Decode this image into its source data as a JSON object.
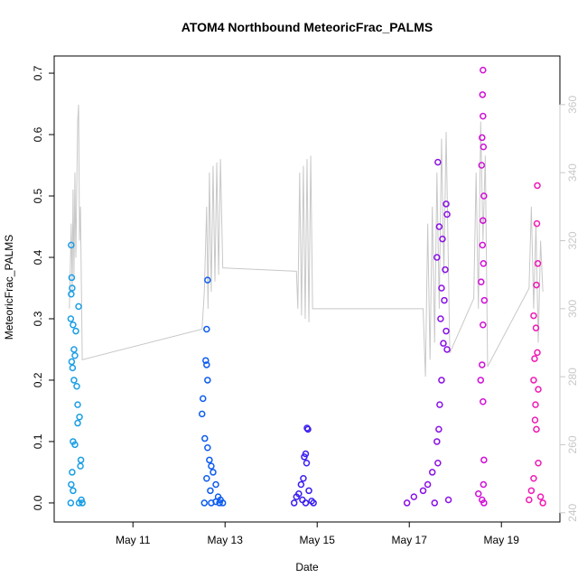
{
  "chart_data": {
    "type": "scatter",
    "title": "ATOM4 Northbound MeteoricFrac_PALMS",
    "xlabel": "Date",
    "ylabel": "MeteoricFrac_PALMS",
    "xlim": [
      9.29,
      20.27
    ],
    "ylim": [
      -0.031,
      0.728
    ],
    "y2lim": [
      237.3,
      374.3
    ],
    "xticks": [
      {
        "value": 11,
        "label": "May 11"
      },
      {
        "value": 13,
        "label": "May 13"
      },
      {
        "value": 15,
        "label": "May 15"
      },
      {
        "value": 17,
        "label": "May 17"
      },
      {
        "value": 19,
        "label": "May 19"
      }
    ],
    "yticks": [
      {
        "value": 0,
        "label": "0.0"
      },
      0.1,
      0.2,
      0.3,
      0.4,
      0.5,
      0.6,
      0.7
    ],
    "y2ticks": [
      240,
      260,
      280,
      300,
      320,
      340,
      360
    ],
    "y2color": "#c8c8c8",
    "series": [
      {
        "color": "#1a9ee6",
        "x": [
          9.66,
          9.67,
          9.68,
          9.66,
          9.65,
          9.7,
          9.72,
          9.74,
          9.67,
          9.69,
          9.78,
          9.8,
          9.84,
          9.7,
          9.74,
          9.86,
          9.68,
          9.66,
          9.7,
          9.65,
          9.9,
          9.88,
          9.82,
          9.76,
          9.72,
          9.8,
          9.87,
          9.83
        ],
        "values": [
          0.42,
          0.367,
          0.35,
          0.34,
          0.3,
          0.29,
          0.25,
          0.24,
          0.23,
          0.22,
          0.19,
          0.16,
          0.14,
          0.1,
          0.095,
          0.06,
          0.05,
          0.03,
          0.02,
          0,
          0,
          0.005,
          0.32,
          0.28,
          0.2,
          0.13,
          0.07,
          0
        ]
      },
      {
        "color": "#0d5cf0",
        "x": [
          12.62,
          12.6,
          12.58,
          12.6,
          12.62,
          12.52,
          12.5,
          12.56,
          12.62,
          12.66,
          12.7,
          12.74,
          12.6,
          12.8,
          12.68,
          12.85,
          12.9,
          12.55,
          12.7,
          12.95,
          12.8,
          12.88
        ],
        "values": [
          0.363,
          0.283,
          0.232,
          0.225,
          0.2,
          0.17,
          0.145,
          0.105,
          0.09,
          0.07,
          0.06,
          0.05,
          0.04,
          0.03,
          0.02,
          0.01,
          0.005,
          0,
          0,
          0,
          0.002,
          0
        ]
      },
      {
        "color": "#3a1ef0",
        "x": [
          14.78,
          14.8,
          14.75,
          14.72,
          14.77,
          14.7,
          14.65,
          14.82,
          14.6,
          14.55,
          14.68,
          14.88,
          14.5,
          14.75,
          14.92
        ],
        "values": [
          0.122,
          0.12,
          0.08,
          0.075,
          0.065,
          0.04,
          0.03,
          0.02,
          0.015,
          0.01,
          0.005,
          0.003,
          0,
          0,
          0
        ]
      },
      {
        "color": "#8a10e6",
        "x": [
          17.62,
          17.8,
          17.82,
          17.65,
          17.72,
          17.6,
          17.78,
          17.7,
          17.76,
          17.68,
          17.8,
          17.74,
          17.82,
          17.7,
          17.66,
          17.64,
          17.6,
          17.62,
          17.5,
          17.4,
          17.3,
          17.1,
          17.85,
          16.95,
          17.55
        ],
        "values": [
          0.555,
          0.487,
          0.47,
          0.45,
          0.43,
          0.4,
          0.38,
          0.35,
          0.33,
          0.3,
          0.28,
          0.26,
          0.25,
          0.2,
          0.16,
          0.12,
          0.1,
          0.065,
          0.05,
          0.03,
          0.02,
          0.01,
          0.005,
          0,
          0
        ]
      },
      {
        "color": "#d010d6",
        "x": [
          18.6,
          18.59,
          18.6,
          18.58,
          18.61,
          18.57,
          18.62,
          18.6,
          18.59,
          18.61,
          18.56,
          18.63,
          18.6,
          18.58,
          18.55,
          18.6,
          18.62,
          18.61,
          18.5,
          18.58,
          18.62
        ],
        "values": [
          0.705,
          0.665,
          0.63,
          0.595,
          0.58,
          0.55,
          0.5,
          0.46,
          0.42,
          0.39,
          0.36,
          0.33,
          0.29,
          0.225,
          0.2,
          0.165,
          0.07,
          0.03,
          0.015,
          0.005,
          0
        ]
      },
      {
        "color": "#f01ab4",
        "x": [
          19.78,
          19.77,
          19.79,
          19.76,
          19.7,
          19.75,
          19.78,
          19.72,
          19.7,
          19.8,
          19.74,
          19.73,
          19.76,
          19.8,
          19.7,
          19.65,
          19.85,
          19.6,
          19.9
        ],
        "values": [
          0.517,
          0.455,
          0.39,
          0.355,
          0.305,
          0.285,
          0.245,
          0.235,
          0.2,
          0.185,
          0.16,
          0.135,
          0.12,
          0.065,
          0.04,
          0.02,
          0.01,
          0.005,
          0
        ]
      },
      {
        "type": "line",
        "axis": "y2",
        "color": "#c8c8c8",
        "x": [
          9.62,
          9.66,
          9.68,
          9.7,
          9.72,
          9.74,
          9.76,
          9.8,
          9.82,
          9.84,
          9.86,
          9.9,
          12.5,
          12.55,
          12.6,
          12.63,
          12.66,
          12.7,
          12.74,
          12.78,
          12.82,
          12.86,
          12.9,
          12.95,
          14.55,
          14.58,
          14.62,
          14.66,
          14.7,
          14.74,
          14.78,
          14.82,
          14.86,
          14.9,
          17.3,
          17.35,
          17.4,
          17.45,
          17.5,
          17.55,
          17.6,
          17.65,
          17.7,
          17.75,
          17.8,
          17.88,
          18.4,
          18.45,
          18.5,
          18.55,
          18.6,
          18.65,
          18.7,
          19.6,
          19.65,
          19.7,
          19.75,
          19.8,
          19.85,
          19.9
        ],
        "values": [
          300,
          325,
          305,
          335,
          310,
          340,
          315,
          355,
          360,
          320,
          330,
          285,
          294,
          305,
          330,
          300,
          340,
          305,
          342,
          308,
          343,
          310,
          344,
          312,
          311,
          300,
          340,
          298,
          342,
          297,
          344,
          296,
          345,
          300,
          300,
          280,
          325,
          285,
          330,
          290,
          340,
          300,
          350,
          310,
          352,
          287,
          303,
          340,
          300,
          355,
          320,
          345,
          283,
          306,
          330,
          300,
          325,
          290,
          320,
          305
        ]
      }
    ]
  }
}
